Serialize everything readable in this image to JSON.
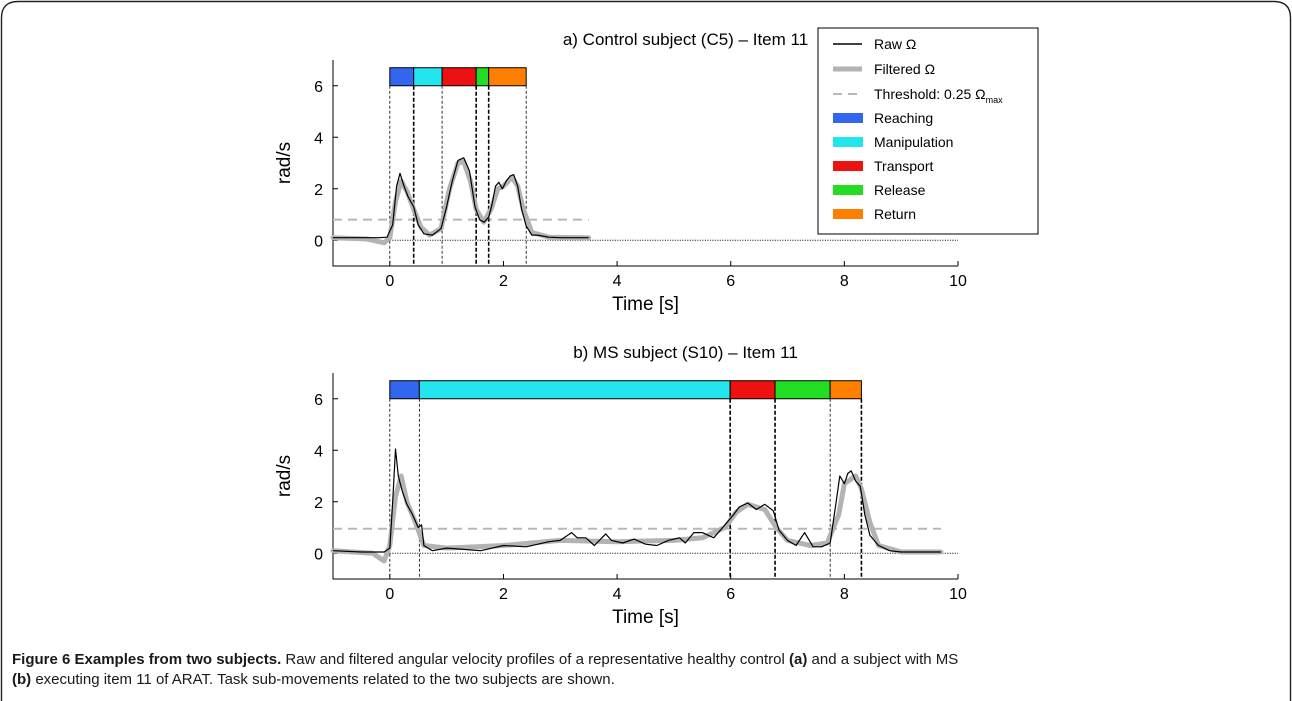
{
  "chart_data": [
    {
      "type": "line",
      "title": "a) Control subject (C5) – Item 11",
      "xlabel": "Time [s]",
      "ylabel": "rad/s",
      "xlim": [
        -1,
        10
      ],
      "ylim": [
        -1,
        7
      ],
      "xticks": [
        0,
        2,
        4,
        6,
        8,
        10
      ],
      "yticks": [
        0,
        2,
        4,
        6
      ],
      "grid": false,
      "threshold": 0.8,
      "threshold_end": 3.5,
      "zero_line_end": 10,
      "phases": [
        {
          "name": "Reaching",
          "start": 0.0,
          "end": 0.42
        },
        {
          "name": "Manipulation",
          "start": 0.42,
          "end": 0.92
        },
        {
          "name": "Transport",
          "start": 0.92,
          "end": 1.52
        },
        {
          "name": "Release",
          "start": 1.52,
          "end": 1.74
        },
        {
          "name": "Return",
          "start": 1.74,
          "end": 2.4
        }
      ],
      "boundary_styles": [
        "thin",
        "thick",
        "thin",
        "thick",
        "thick",
        "thin"
      ],
      "series": [
        {
          "name": "Raw Ω",
          "x": [
            -1.0,
            -0.5,
            -0.2,
            -0.05,
            0.05,
            0.12,
            0.18,
            0.25,
            0.32,
            0.42,
            0.5,
            0.6,
            0.75,
            0.9,
            1.0,
            1.1,
            1.2,
            1.3,
            1.4,
            1.5,
            1.58,
            1.66,
            1.74,
            1.8,
            1.86,
            1.92,
            1.98,
            2.05,
            2.12,
            2.18,
            2.25,
            2.32,
            2.4,
            2.5,
            2.6,
            2.8,
            3.0,
            3.2,
            3.5
          ],
          "y": [
            0.1,
            0.1,
            0.1,
            0.12,
            0.6,
            2.1,
            2.6,
            2.1,
            1.7,
            1.3,
            0.6,
            0.25,
            0.2,
            0.45,
            1.3,
            2.3,
            3.1,
            3.2,
            2.7,
            1.3,
            0.8,
            0.7,
            0.9,
            1.4,
            2.1,
            2.25,
            2.0,
            2.3,
            2.5,
            2.55,
            2.1,
            1.2,
            0.55,
            0.2,
            0.2,
            0.12,
            0.1,
            0.1,
            0.1
          ]
        },
        {
          "name": "Filtered Ω",
          "x": [
            -1.0,
            -0.4,
            -0.1,
            0.0,
            0.1,
            0.2,
            0.3,
            0.42,
            0.55,
            0.7,
            0.9,
            1.05,
            1.2,
            1.3,
            1.42,
            1.52,
            1.65,
            1.78,
            1.9,
            2.0,
            2.15,
            2.25,
            2.35,
            2.5,
            2.8,
            3.5
          ],
          "y": [
            0.1,
            0.05,
            -0.1,
            0.1,
            1.5,
            2.3,
            1.9,
            1.2,
            0.5,
            0.2,
            0.45,
            2.0,
            3.0,
            3.05,
            2.3,
            1.2,
            0.7,
            1.2,
            2.0,
            2.1,
            2.45,
            2.1,
            1.2,
            0.3,
            0.12,
            0.1
          ]
        }
      ],
      "legend": {
        "placement": "top-right",
        "lines": [
          {
            "label": "Raw Ω",
            "style": "raw"
          },
          {
            "label": "Filtered Ω",
            "style": "filtered"
          },
          {
            "label": "Threshold: 0.25 Ω",
            "sub": "max",
            "style": "threshold"
          }
        ],
        "patches": [
          {
            "label": "Reaching",
            "color": "#3366ee"
          },
          {
            "label": "Manipulation",
            "color": "#22e5ee"
          },
          {
            "label": "Transport",
            "color": "#ee1111"
          },
          {
            "label": "Release",
            "color": "#22dd22"
          },
          {
            "label": "Return",
            "color": "#ff8000"
          }
        ]
      }
    },
    {
      "type": "line",
      "title": "b) MS subject (S10) – Item 11",
      "xlabel": "Time [s]",
      "ylabel": "rad/s",
      "xlim": [
        -1,
        10
      ],
      "ylim": [
        -1,
        7
      ],
      "xticks": [
        0,
        2,
        4,
        6,
        8,
        10
      ],
      "yticks": [
        0,
        2,
        4,
        6
      ],
      "grid": false,
      "threshold": 0.95,
      "threshold_end": 9.7,
      "zero_line_end": 10,
      "phases": [
        {
          "name": "Reaching",
          "start": 0.0,
          "end": 0.52
        },
        {
          "name": "Manipulation",
          "start": 0.52,
          "end": 5.99
        },
        {
          "name": "Transport",
          "start": 5.99,
          "end": 6.78
        },
        {
          "name": "Release",
          "start": 6.78,
          "end": 7.75
        },
        {
          "name": "Return",
          "start": 7.75,
          "end": 8.3
        }
      ],
      "boundary_styles": [
        "thin",
        "thin",
        "thick",
        "thick",
        "thin",
        "thick"
      ],
      "series": [
        {
          "name": "Raw Ω",
          "x": [
            -1.0,
            -0.5,
            -0.1,
            0.0,
            0.05,
            0.1,
            0.15,
            0.22,
            0.3,
            0.4,
            0.5,
            0.56,
            0.6,
            0.75,
            1.0,
            1.3,
            1.6,
            2.0,
            2.4,
            2.8,
            3.0,
            3.2,
            3.3,
            3.45,
            3.6,
            3.8,
            3.9,
            4.1,
            4.3,
            4.5,
            4.7,
            4.9,
            5.1,
            5.2,
            5.35,
            5.5,
            5.7,
            5.9,
            6.05,
            6.15,
            6.3,
            6.45,
            6.6,
            6.75,
            6.85,
            7.0,
            7.15,
            7.3,
            7.45,
            7.6,
            7.75,
            7.85,
            7.92,
            8.0,
            8.06,
            8.12,
            8.2,
            8.28,
            8.36,
            8.45,
            8.6,
            8.8,
            9.0,
            9.3,
            9.7
          ],
          "y": [
            0.1,
            0.05,
            0.05,
            0.2,
            2.0,
            4.05,
            3.0,
            2.4,
            1.9,
            1.5,
            1.0,
            1.1,
            0.3,
            0.1,
            0.2,
            0.15,
            0.1,
            0.3,
            0.25,
            0.45,
            0.5,
            0.8,
            0.6,
            0.6,
            0.3,
            0.75,
            0.5,
            0.4,
            0.55,
            0.35,
            0.3,
            0.5,
            0.6,
            0.4,
            0.8,
            0.8,
            0.6,
            1.1,
            1.5,
            1.8,
            1.95,
            1.7,
            1.9,
            1.65,
            0.9,
            0.5,
            0.3,
            0.8,
            0.25,
            0.25,
            0.4,
            1.9,
            3.0,
            2.7,
            3.1,
            3.2,
            2.8,
            2.6,
            1.5,
            0.7,
            0.3,
            0.1,
            0.05,
            0.05,
            0.05
          ]
        },
        {
          "name": "Filtered Ω",
          "x": [
            -1.0,
            -0.3,
            -0.1,
            0.0,
            0.1,
            0.2,
            0.3,
            0.45,
            0.6,
            1.0,
            2.0,
            3.0,
            4.0,
            5.0,
            5.5,
            5.9,
            6.1,
            6.3,
            6.6,
            6.8,
            7.0,
            7.4,
            7.7,
            7.9,
            8.0,
            8.2,
            8.3,
            8.45,
            8.6,
            9.0,
            9.7
          ],
          "y": [
            0.1,
            0.0,
            -0.3,
            0.3,
            2.2,
            3.0,
            2.0,
            1.2,
            0.3,
            0.2,
            0.3,
            0.5,
            0.45,
            0.5,
            0.6,
            1.0,
            1.6,
            1.9,
            1.7,
            1.0,
            0.5,
            0.3,
            0.4,
            1.5,
            2.7,
            3.0,
            2.5,
            1.2,
            0.3,
            0.05,
            0.05
          ]
        }
      ]
    }
  ],
  "caption": {
    "label": "Figure 6 Examples from two subjects.",
    "text_1": " Raw and filtered angular velocity profiles of a representative healthy control ",
    "bold_a": "(a)",
    "text_2": " and a subject with MS",
    "bold_b": "(b)",
    "text_3": " executing item 11 of ARAT. Task sub-movements related to the two subjects are shown."
  }
}
